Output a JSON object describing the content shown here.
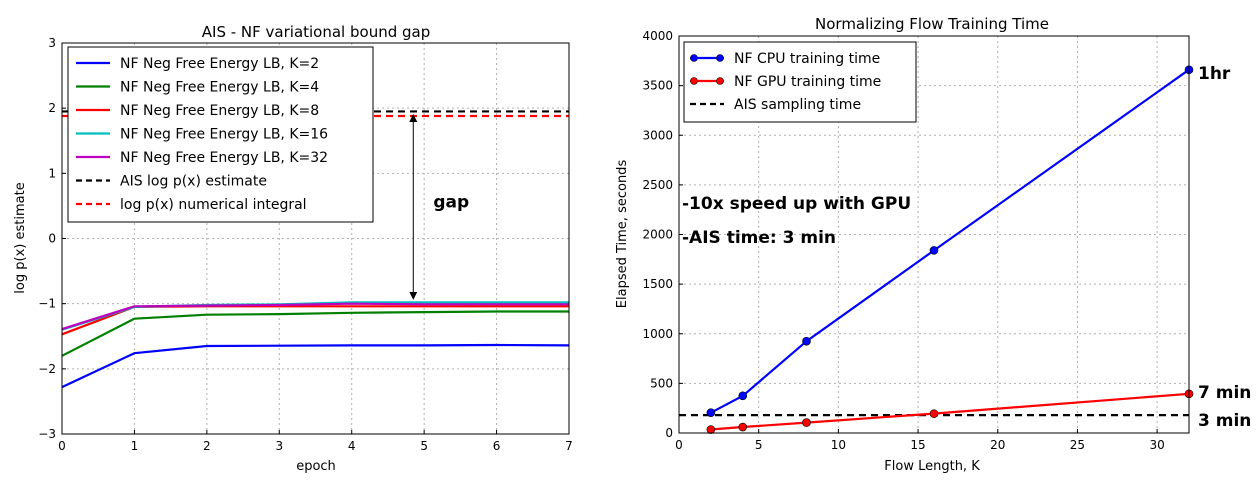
{
  "chart_data": [
    {
      "type": "line",
      "title": "AIS - NF variational bound gap",
      "xlabel": "epoch",
      "ylabel": "log p(x) estimate",
      "xlim": [
        0,
        7
      ],
      "ylim": [
        -3,
        3
      ],
      "xticks": [
        0,
        1,
        2,
        3,
        4,
        5,
        6,
        7
      ],
      "yticks": [
        -3,
        -2,
        -1,
        0,
        1,
        2,
        3
      ],
      "ytick_labels": [
        "−3",
        "−2",
        "−1",
        "0",
        "1",
        "2",
        "3"
      ],
      "grid": true,
      "legend_position": "upper-left",
      "x": [
        0,
        1,
        2,
        3,
        4,
        5,
        6,
        7
      ],
      "series": [
        {
          "name": "NF Neg Free Energy LB, K=2",
          "color": "#0000ff",
          "values": [
            -2.28,
            -1.76,
            -1.65,
            -1.645,
            -1.64,
            -1.64,
            -1.635,
            -1.64
          ]
        },
        {
          "name": "NF Neg Free Energy LB, K=4",
          "color": "#008000",
          "values": [
            -1.8,
            -1.23,
            -1.17,
            -1.16,
            -1.14,
            -1.13,
            -1.12,
            -1.12
          ]
        },
        {
          "name": "NF Neg Free Energy LB, K=8",
          "color": "#ff0000",
          "values": [
            -1.47,
            -1.05,
            -1.04,
            -1.04,
            -1.04,
            -1.04,
            -1.04,
            -1.04
          ]
        },
        {
          "name": "NF Neg Free Energy LB, K=16",
          "color": "#00bfbf",
          "values": [
            -1.4,
            -1.05,
            -1.02,
            -1.01,
            -0.98,
            -0.98,
            -0.98,
            -0.98
          ]
        },
        {
          "name": "NF Neg Free Energy LB, K=32",
          "color": "#bf00bf",
          "values": [
            -1.39,
            -1.04,
            -1.03,
            -1.02,
            -1.0,
            -1.01,
            -1.01,
            -1.01
          ]
        }
      ],
      "reference_lines": [
        {
          "name": "AIS log p(x) estimate",
          "color": "#000000",
          "value": 1.95
        },
        {
          "name": "log p(x) numerical integral",
          "color": "#ff0000",
          "value": 1.88
        }
      ],
      "annotations": [
        {
          "text": "gap",
          "x": 4.85,
          "y": 0.55
        },
        {
          "type": "double-arrow",
          "x": 4.85,
          "y_from": 1.85,
          "y_to": -0.88
        }
      ]
    },
    {
      "type": "line",
      "title": "Normalizing Flow Training Time",
      "xlabel": "Flow Length, K",
      "ylabel": "Elapsed Time, seconds",
      "xlim": [
        0,
        32
      ],
      "ylim": [
        0,
        4000
      ],
      "xticks": [
        0,
        5,
        10,
        15,
        20,
        25,
        30
      ],
      "yticks": [
        0,
        500,
        1000,
        1500,
        2000,
        2500,
        3000,
        3500,
        4000
      ],
      "grid": true,
      "legend_position": "upper-left",
      "x": [
        2,
        4,
        8,
        16,
        32
      ],
      "series": [
        {
          "name": "NF CPU training time",
          "color": "#0000ff",
          "values": [
            205,
            375,
            925,
            1840,
            3660
          ],
          "marker": "circle"
        },
        {
          "name": "NF GPU training time",
          "color": "#ff0000",
          "values": [
            35,
            60,
            105,
            195,
            395
          ],
          "marker": "circle"
        }
      ],
      "reference_lines": [
        {
          "name": "AIS sampling time",
          "color": "#000000",
          "value": 180
        }
      ],
      "annotations": [
        {
          "text": "-10x speed up with GPU"
        },
        {
          "text": "-AIS time: 3 min"
        },
        {
          "text": "1hr"
        },
        {
          "text": "7 min"
        },
        {
          "text": "3 min"
        }
      ]
    }
  ]
}
